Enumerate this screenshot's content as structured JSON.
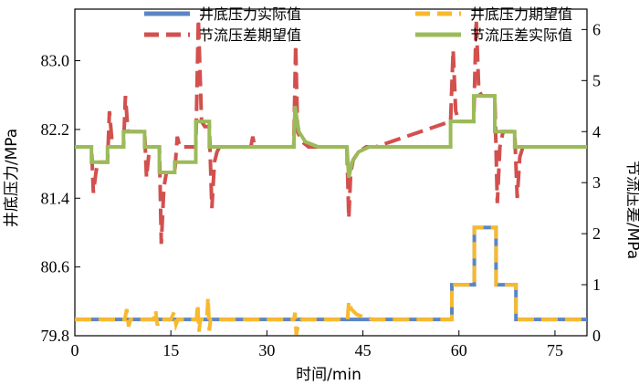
{
  "chart_data": {
    "type": "line",
    "xlabel": "时间/min",
    "ylabel_left": "井底压力/MPa",
    "ylabel_right": "节流压差/MPa",
    "xlim": [
      0,
      80
    ],
    "ylim_left": [
      79.8,
      83.6
    ],
    "ylim_right": [
      0,
      6.4
    ],
    "x_ticks": [
      0,
      15,
      30,
      45,
      60,
      75
    ],
    "y_left_ticks": [
      79.8,
      80.6,
      81.4,
      82.2,
      83.0
    ],
    "y_left_tick_labels": [
      "79.8",
      "80.6",
      "81.4",
      "82.2",
      "83.0"
    ],
    "y_right_ticks": [
      0,
      1,
      2,
      3,
      4,
      5,
      6
    ],
    "grid": false,
    "legend_placement": "top",
    "series": [
      {
        "name": "井底压力实际值",
        "axis": "right",
        "color": "#5b86c5",
        "dash": "solid",
        "x": [
          0,
          58.9,
          58.9,
          62.4,
          62.4,
          65.8,
          65.8,
          68.9,
          68.9,
          80
        ],
        "y": [
          0.32,
          0.32,
          1.0,
          1.0,
          2.12,
          2.12,
          1.0,
          1.0,
          0.32,
          0.32
        ]
      },
      {
        "name": "井底压力期望值",
        "axis": "right",
        "color": "#f7b92e",
        "dash": "dashed",
        "x": [
          0,
          7.8,
          8.1,
          8.4,
          8.7,
          12.3,
          12.6,
          12.9,
          13.2,
          15,
          15.5,
          15.8,
          16.1,
          19.0,
          19.2,
          19.4,
          19.6,
          20.6,
          20.8,
          21.0,
          21.2,
          34.2,
          34.4,
          34.6,
          34.8,
          35.0,
          35.6,
          36.5,
          42.6,
          42.8,
          43.2,
          44.0,
          45.2,
          46.5,
          58.9,
          58.9,
          62.4,
          62.4,
          65.8,
          65.8,
          68.9,
          68.9,
          80
        ],
        "y": [
          0.32,
          0.32,
          0.52,
          0.18,
          0.32,
          0.32,
          0.5,
          0.2,
          0.32,
          0.32,
          0.46,
          0.22,
          0.32,
          0.32,
          0.62,
          0.08,
          0.32,
          0.32,
          0.75,
          0.1,
          0.32,
          0.32,
          0.45,
          0.02,
          0.15,
          0.28,
          0.32,
          0.32,
          0.32,
          0.68,
          0.52,
          0.42,
          0.36,
          0.32,
          0.32,
          1.0,
          1.0,
          2.12,
          2.12,
          1.0,
          1.0,
          0.32,
          0.32
        ]
      },
      {
        "name": "节流压差期望值",
        "axis": "right",
        "color": "#d2504e",
        "dash": "dashed",
        "x": [
          0,
          2.6,
          2.9,
          3.3,
          3.6,
          5.1,
          5.4,
          5.8,
          6.1,
          7.6,
          7.9,
          8.3,
          8.6,
          10.9,
          11.2,
          11.6,
          11.9,
          13.2,
          13.5,
          13.9,
          14.3,
          15.6,
          16.0,
          16.4,
          18.9,
          19.3,
          19.8,
          20.3,
          21.0,
          21.4,
          21.8,
          22.2,
          22.6,
          27.5,
          27.8,
          28.1,
          34.2,
          34.5,
          34.8,
          35.5,
          36.5,
          38.0,
          42.5,
          42.8,
          43.1,
          43.5,
          44.3,
          45.5,
          47.0,
          58.7,
          59.1,
          59.5,
          60.0,
          62.3,
          62.7,
          63.1,
          63.6,
          65.6,
          66.0,
          66.4,
          66.9,
          68.7,
          69.1,
          69.5,
          70.0,
          80
        ],
        "y": [
          3.7,
          3.7,
          2.8,
          3.2,
          3.4,
          3.4,
          4.4,
          3.8,
          3.7,
          3.7,
          4.7,
          4.0,
          4.0,
          4.0,
          3.1,
          3.6,
          3.7,
          3.7,
          1.8,
          2.9,
          3.2,
          3.2,
          3.9,
          3.7,
          3.7,
          6.2,
          4.2,
          4.1,
          4.1,
          2.5,
          3.4,
          3.6,
          3.7,
          3.7,
          3.9,
          3.7,
          3.7,
          5.7,
          4.0,
          3.8,
          3.7,
          3.7,
          3.7,
          2.3,
          3.2,
          3.45,
          3.6,
          3.7,
          3.7,
          4.2,
          5.6,
          4.4,
          4.2,
          4.2,
          6.2,
          4.8,
          4.7,
          4.7,
          2.6,
          3.7,
          4.0,
          4.0,
          2.7,
          3.5,
          3.7,
          3.7
        ]
      },
      {
        "name": "节流压差实际值",
        "axis": "right",
        "color": "#9bbb59",
        "dash": "solid",
        "x": [
          0,
          2.6,
          2.6,
          5.1,
          5.1,
          7.6,
          7.6,
          10.9,
          10.9,
          13.2,
          13.2,
          15.6,
          15.6,
          18.9,
          18.9,
          21.0,
          21.0,
          23.0,
          34.2,
          34.4,
          35.0,
          36.0,
          38.0,
          42.5,
          42.8,
          43.3,
          44.3,
          46.0,
          58.7,
          58.7,
          62.3,
          62.3,
          65.6,
          65.6,
          68.7,
          68.7,
          80
        ],
        "y": [
          3.7,
          3.7,
          3.4,
          3.4,
          3.7,
          3.7,
          4.0,
          4.0,
          3.7,
          3.7,
          3.2,
          3.2,
          3.4,
          3.4,
          4.2,
          4.2,
          3.7,
          3.7,
          3.7,
          4.5,
          4.0,
          3.8,
          3.7,
          3.7,
          3.1,
          3.4,
          3.6,
          3.7,
          3.7,
          4.2,
          4.2,
          4.7,
          4.7,
          4.0,
          4.0,
          3.7,
          3.7
        ]
      }
    ]
  }
}
